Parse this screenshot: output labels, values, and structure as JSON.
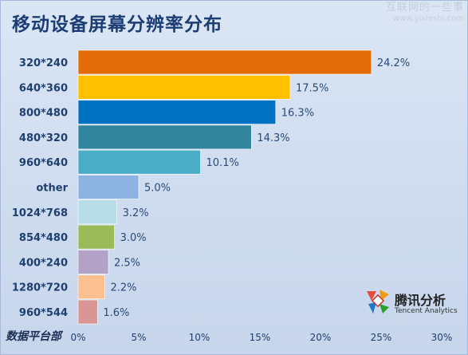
{
  "page": {
    "title": "移动设备屏幕分辨率分布",
    "watermark_line1": "互联网的一些事",
    "watermark_line2": "www.yixieshi.com",
    "footer": "数据平台部",
    "logo_cn": "腾讯分析",
    "logo_en": "Tencent Analytics"
  },
  "chart_data": {
    "type": "bar",
    "orientation": "horizontal",
    "title": "移动设备屏幕分辨率分布",
    "xlabel": "",
    "ylabel": "",
    "xlim": [
      0,
      30
    ],
    "x_ticks": [
      "0%",
      "5%",
      "10%",
      "15%",
      "20%",
      "25%",
      "30%"
    ],
    "grid": false,
    "legend": "none",
    "categories": [
      "320*240",
      "640*360",
      "800*480",
      "480*320",
      "960*640",
      "other",
      "1024*768",
      "854*480",
      "400*240",
      "1280*720",
      "960*544"
    ],
    "values": [
      24.2,
      17.5,
      16.3,
      14.3,
      10.1,
      5.0,
      3.2,
      3.0,
      2.5,
      2.2,
      1.6
    ],
    "value_labels": [
      "24.2%",
      "17.5%",
      "16.3%",
      "14.3%",
      "10.1%",
      "5.0%",
      "3.2%",
      "3.0%",
      "2.5%",
      "2.2%",
      "1.6%"
    ],
    "colors": [
      "#e36c09",
      "#ffc000",
      "#0070c0",
      "#31859c",
      "#4bacc6",
      "#8db3e2",
      "#b7dde8",
      "#9bbb59",
      "#b2a2c7",
      "#fac090",
      "#d99694"
    ]
  }
}
